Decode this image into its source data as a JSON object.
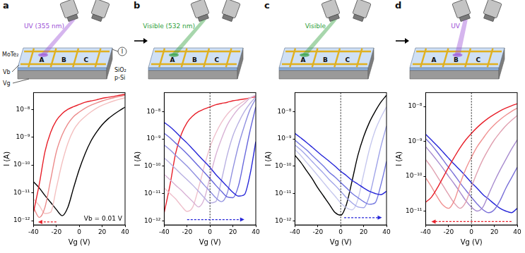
{
  "chart_data": [
    {
      "type": "line",
      "log": "y",
      "grid": false,
      "x_label": "Vg (V)",
      "y_label": "I (A)",
      "xlim": [
        -40,
        40
      ],
      "xticks": [
        -40,
        -20,
        0,
        20,
        40
      ],
      "ylim": [
        7e-13,
        4e-08
      ],
      "yticks": [
        {
          "value": 1e-12,
          "label": "10⁻¹²"
        },
        {
          "value": 1e-11,
          "label": "10⁻¹¹"
        },
        {
          "value": 1e-10,
          "label": "10⁻¹⁰"
        },
        {
          "value": 1e-09,
          "label": "10⁻⁹"
        },
        {
          "value": 1e-08,
          "label": "10⁻⁸"
        }
      ],
      "x": [
        -40,
        -35,
        -30,
        -25,
        -20,
        -15,
        -10,
        -5,
        0,
        5,
        10,
        15,
        20,
        25,
        30,
        35,
        40
      ],
      "series": [
        {
          "color": "#000000",
          "values": [
            2.5e-11,
            1.5e-11,
            8e-12,
            4.5e-12,
            2.5e-12,
            1.5e-12,
            3e-12,
            1.5e-11,
            7e-11,
            2.5e-10,
            7e-10,
            1.5e-09,
            2.8e-09,
            4.5e-09,
            6.5e-09,
            9e-09,
            1.2e-08
          ]
        },
        {
          "color": "#f4c0c0",
          "values": [
            6e-12,
            3.5e-12,
            1.8e-12,
            2e-12,
            1.5e-11,
            1.2e-10,
            6e-10,
            1.8e-09,
            3.5e-09,
            5.5e-09,
            8e-09,
            1.1e-08,
            1.4e-08,
            1.7e-08,
            2e-08,
            2.3e-08,
            2.6e-08
          ]
        },
        {
          "color": "#ec8c8c",
          "values": [
            3e-12,
            1.3e-12,
            3e-12,
            3e-11,
            3e-10,
            1.2e-09,
            3e-09,
            5.5e-09,
            8e-09,
            1.1e-08,
            1.4e-08,
            1.7e-08,
            2e-08,
            2.3e-08,
            2.6e-08,
            2.9e-08,
            3.2e-08
          ]
        },
        {
          "color": "#e8202a",
          "values": [
            2e-12,
            2e-11,
            3e-10,
            1.5e-09,
            4e-09,
            7e-09,
            1e-08,
            1.25e-08,
            1.5e-08,
            1.8e-08,
            2e-08,
            2.2e-08,
            2.5e-08,
            2.7e-08,
            2.9e-08,
            3.2e-08,
            3.5e-08
          ]
        }
      ],
      "arrow": {
        "from": [
          -20,
          9e-13
        ],
        "to": [
          -36,
          9e-13
        ],
        "color": "#e8202a"
      },
      "annotation": "Vb = 0.01 V"
    },
    {
      "type": "line",
      "log": "y",
      "grid": false,
      "x_label": "Vg (V)",
      "y_label": "I (A)",
      "xlim": [
        -40,
        40
      ],
      "xticks": [
        -40,
        -20,
        0,
        20,
        40
      ],
      "ylim": [
        7e-13,
        5e-08
      ],
      "yticks": [
        {
          "value": 1e-12,
          "label": "10⁻¹²"
        },
        {
          "value": 1e-11,
          "label": "10⁻¹¹"
        },
        {
          "value": 1e-10,
          "label": "10⁻¹⁰"
        },
        {
          "value": 1e-09,
          "label": "10⁻⁹"
        },
        {
          "value": 1e-08,
          "label": "10⁻⁸"
        }
      ],
      "x": [
        -40,
        -35,
        -30,
        -25,
        -20,
        -15,
        -10,
        -5,
        0,
        5,
        10,
        15,
        20,
        25,
        30,
        35,
        40
      ],
      "series": [
        {
          "color": "#e8202a",
          "values": [
            2e-12,
            2e-11,
            3e-10,
            1.5e-09,
            4e-09,
            7e-09,
            1e-08,
            1.25e-08,
            1.5e-08,
            1.8e-08,
            2e-08,
            2.2e-08,
            2.5e-08,
            2.7e-08,
            2.9e-08,
            3.2e-08,
            3.5e-08
          ]
        },
        {
          "color": "#efc0cc",
          "values": [
            1.6e-11,
            1e-11,
            6.3e-12,
            3.5e-12,
            2.2e-12,
            3.2e-12,
            1.6e-11,
            1e-10,
            5e-10,
            1.6e-09,
            4e-09,
            8e-09,
            1.3e-08,
            1.8e-08,
            2.5e-08,
            3.2e-08,
            4e-08
          ]
        },
        {
          "color": "#d9b3d6",
          "values": [
            5e-11,
            3.2e-11,
            2e-11,
            1.3e-11,
            8e-12,
            5e-12,
            3.2e-12,
            6.3e-12,
            4e-11,
            2.5e-10,
            1e-09,
            3.2e-09,
            7e-09,
            1.3e-08,
            2e-08,
            3.2e-08,
            4e-08
          ]
        },
        {
          "color": "#b8b0e2",
          "values": [
            2e-10,
            1.3e-10,
            8e-11,
            5e-11,
            3.2e-11,
            2e-11,
            1.2e-11,
            7e-12,
            4.5e-12,
            5e-12,
            3e-11,
            2.5e-10,
            1.3e-09,
            4e-09,
            1e-08,
            2e-08,
            3.5e-08
          ]
        },
        {
          "color": "#9090e0",
          "values": [
            6e-10,
            4e-10,
            2.5e-10,
            1.6e-10,
            1e-10,
            6e-11,
            3.5e-11,
            2e-11,
            1.2e-11,
            7e-12,
            5e-12,
            1e-11,
            8e-11,
            6e-10,
            3e-09,
            1.2e-08,
            3e-08
          ]
        },
        {
          "color": "#6868dc",
          "values": [
            1.6e-09,
            1.1e-09,
            7e-10,
            4.5e-10,
            2.8e-10,
            1.7e-10,
            1e-10,
            6e-11,
            3.5e-11,
            2e-11,
            1.2e-11,
            7.5e-12,
            7e-12,
            2e-11,
            2e-10,
            2e-09,
            1.5e-08
          ]
        },
        {
          "color": "#2626d8",
          "values": [
            4e-09,
            2.8e-09,
            1.8e-09,
            1.1e-09,
            7e-10,
            4.2e-10,
            2.5e-10,
            1.5e-10,
            9e-11,
            5e-11,
            3e-11,
            1.8e-11,
            1.1e-11,
            8e-12,
            9e-12,
            5e-11,
            8e-10
          ]
        }
      ],
      "reference_x": 0,
      "arrow": {
        "from": [
          -20,
          1.1e-12
        ],
        "to": [
          30,
          1.1e-12
        ],
        "color": "#2626d8"
      }
    },
    {
      "type": "line",
      "log": "y",
      "grid": false,
      "x_label": "Vg (V)",
      "y_label": "I (A)",
      "xlim": [
        -40,
        40
      ],
      "xticks": [
        -40,
        -20,
        0,
        20,
        40
      ],
      "ylim": [
        7e-13,
        5e-08
      ],
      "yticks": [
        {
          "value": 1e-12,
          "label": "10⁻¹²"
        },
        {
          "value": 1e-11,
          "label": "10⁻¹¹"
        },
        {
          "value": 1e-10,
          "label": "10⁻¹⁰"
        },
        {
          "value": 1e-09,
          "label": "10⁻⁹"
        },
        {
          "value": 1e-08,
          "label": "10⁻⁸"
        }
      ],
      "x": [
        -40,
        -35,
        -30,
        -25,
        -20,
        -15,
        -10,
        -5,
        0,
        5,
        10,
        15,
        20,
        25,
        30,
        35,
        40
      ],
      "series": [
        {
          "color": "#000000",
          "values": [
            2.5e-10,
            1.4e-10,
            7e-11,
            3.5e-11,
            1.6e-11,
            8e-12,
            4e-12,
            2e-12,
            1.6e-12,
            4e-12,
            3e-11,
            2.5e-10,
            1.2e-09,
            4e-09,
            1e-08,
            2.2e-08,
            4e-08
          ]
        },
        {
          "color": "#c6c8ee",
          "values": [
            4e-10,
            2.5e-10,
            1.4e-10,
            8e-11,
            4.5e-11,
            2.5e-11,
            1.4e-11,
            8e-12,
            4.5e-12,
            3e-12,
            2.5e-12,
            6e-12,
            5e-11,
            4e-10,
            2e-09,
            6e-09,
            1.5e-08
          ]
        },
        {
          "color": "#a0a4e8",
          "values": [
            6e-10,
            4e-10,
            2.5e-10,
            1.5e-10,
            9e-11,
            5.5e-11,
            3.2e-11,
            2e-11,
            1.2e-11,
            7e-12,
            4.5e-12,
            3.2e-12,
            3e-12,
            8e-12,
            6e-11,
            5e-10,
            3e-09
          ]
        },
        {
          "color": "#7478e0",
          "values": [
            9e-10,
            6e-10,
            4e-10,
            2.5e-10,
            1.6e-10,
            1e-10,
            6e-11,
            4e-11,
            2.5e-11,
            1.6e-11,
            1e-11,
            7e-12,
            5e-12,
            4e-12,
            4.5e-12,
            2e-11,
            1.5e-10
          ]
        },
        {
          "color": "#2626d8",
          "values": [
            1.6e-09,
            1.1e-09,
            7.5e-10,
            5e-10,
            3.3e-10,
            2.2e-10,
            1.5e-10,
            1e-10,
            6.5e-11,
            4.5e-11,
            3e-11,
            2.2e-11,
            1.6e-11,
            1.2e-11,
            1e-11,
            9e-12,
            1.2e-11
          ]
        }
      ],
      "reference_x": 0,
      "arrow": {
        "from": [
          3,
          1.3e-12
        ],
        "to": [
          36,
          1.3e-12
        ],
        "color": "#2626d8"
      }
    },
    {
      "type": "line",
      "log": "y",
      "grid": false,
      "x_label": "Vg (V)",
      "y_label": "I (A)",
      "xlim": [
        -40,
        40
      ],
      "xticks": [
        -40,
        -20,
        0,
        20,
        40
      ],
      "ylim": [
        4e-12,
        2.5e-08
      ],
      "yticks": [
        {
          "value": 1e-11,
          "label": "10⁻¹¹"
        },
        {
          "value": 1e-10,
          "label": "10⁻¹⁰"
        },
        {
          "value": 1e-09,
          "label": "10⁻⁹"
        },
        {
          "value": 1e-08,
          "label": "10⁻⁸"
        }
      ],
      "x": [
        -40,
        -35,
        -30,
        -25,
        -20,
        -15,
        -10,
        -5,
        0,
        5,
        10,
        15,
        20,
        25,
        30,
        35,
        40
      ],
      "series": [
        {
          "color": "#2626d8",
          "values": [
            1.6e-09,
            1.1e-09,
            7.5e-10,
            5e-10,
            3.3e-10,
            2.2e-10,
            1.5e-10,
            1e-10,
            6.5e-11,
            4.5e-11,
            3e-11,
            2.2e-11,
            1.6e-11,
            1.2e-11,
            1e-11,
            9e-12,
            1.2e-11
          ]
        },
        {
          "color": "#7a70d8",
          "values": [
            1.2e-09,
            8e-10,
            5e-10,
            3e-10,
            1.8e-10,
            1.1e-10,
            6.5e-11,
            4e-11,
            2.5e-11,
            1.6e-11,
            1.1e-11,
            9e-12,
            1.1e-11,
            2e-11,
            4.5e-11,
            9e-11,
            1.8e-10
          ]
        },
        {
          "color": "#a88ccf",
          "values": [
            7e-10,
            4.5e-10,
            2.8e-10,
            1.7e-10,
            1e-10,
            6e-11,
            3.5e-11,
            2e-11,
            1.3e-11,
            1e-11,
            1.3e-11,
            3e-11,
            7e-11,
            1.5e-10,
            3e-10,
            6e-10,
            1.1e-09
          ]
        },
        {
          "color": "#e0a0b0",
          "values": [
            3e-10,
            1.8e-10,
            1e-10,
            5.5e-11,
            3e-11,
            1.7e-11,
            1.2e-11,
            1.8e-11,
            5e-11,
            1.3e-10,
            3e-10,
            6e-10,
            1.1e-09,
            1.8e-09,
            2.8e-09,
            4e-09,
            5.5e-09
          ]
        },
        {
          "color": "#f09090",
          "values": [
            9e-11,
            5e-11,
            2.6e-11,
            1.5e-11,
            1.2e-11,
            2e-11,
            6e-11,
            1.6e-10,
            3.5e-10,
            7e-10,
            1.2e-09,
            2e-09,
            3e-09,
            4.2e-09,
            5.6e-09,
            7.2e-09,
            9e-09
          ]
        },
        {
          "color": "#e8202a",
          "values": [
            1.8e-11,
            2.5e-11,
            4.5e-11,
            9e-11,
            1.8e-10,
            3.5e-10,
            6.5e-10,
            1.1e-09,
            1.7e-09,
            2.5e-09,
            3.5e-09,
            4.7e-09,
            6e-09,
            7.5e-09,
            9e-09,
            1.05e-08,
            1.2e-08
          ]
        }
      ],
      "reference_x": 0,
      "arrow": {
        "from": [
          35,
          5e-12
        ],
        "to": [
          -35,
          5e-12
        ],
        "color": "#e8202a"
      }
    }
  ],
  "schematics": [
    {
      "letter": "a",
      "beam": "UV (355 nm)",
      "beam_color": "#9c4fd6",
      "target": "A",
      "pixels": [
        "A",
        "B",
        "C"
      ],
      "labels": {
        "material": "MoTe₂",
        "dielectric": "SiO₂",
        "substrate": "p-Si",
        "bias": "Vb",
        "gate": "Vg",
        "current": "I"
      }
    },
    {
      "letter": "b",
      "beam": "Visible (532 nm)",
      "beam_color": "#2e9e3a",
      "target": "A",
      "pixels": [
        "A",
        "B",
        "C"
      ]
    },
    {
      "letter": "c",
      "beam": "Visible",
      "beam_color": "#2e9e3a",
      "target": "A",
      "pixels": [
        "A",
        "B",
        "C"
      ]
    },
    {
      "letter": "d",
      "beam": "UV",
      "beam_color": "#9c4fd6",
      "target": "B",
      "pixels": [
        "A",
        "B",
        "C"
      ]
    }
  ]
}
